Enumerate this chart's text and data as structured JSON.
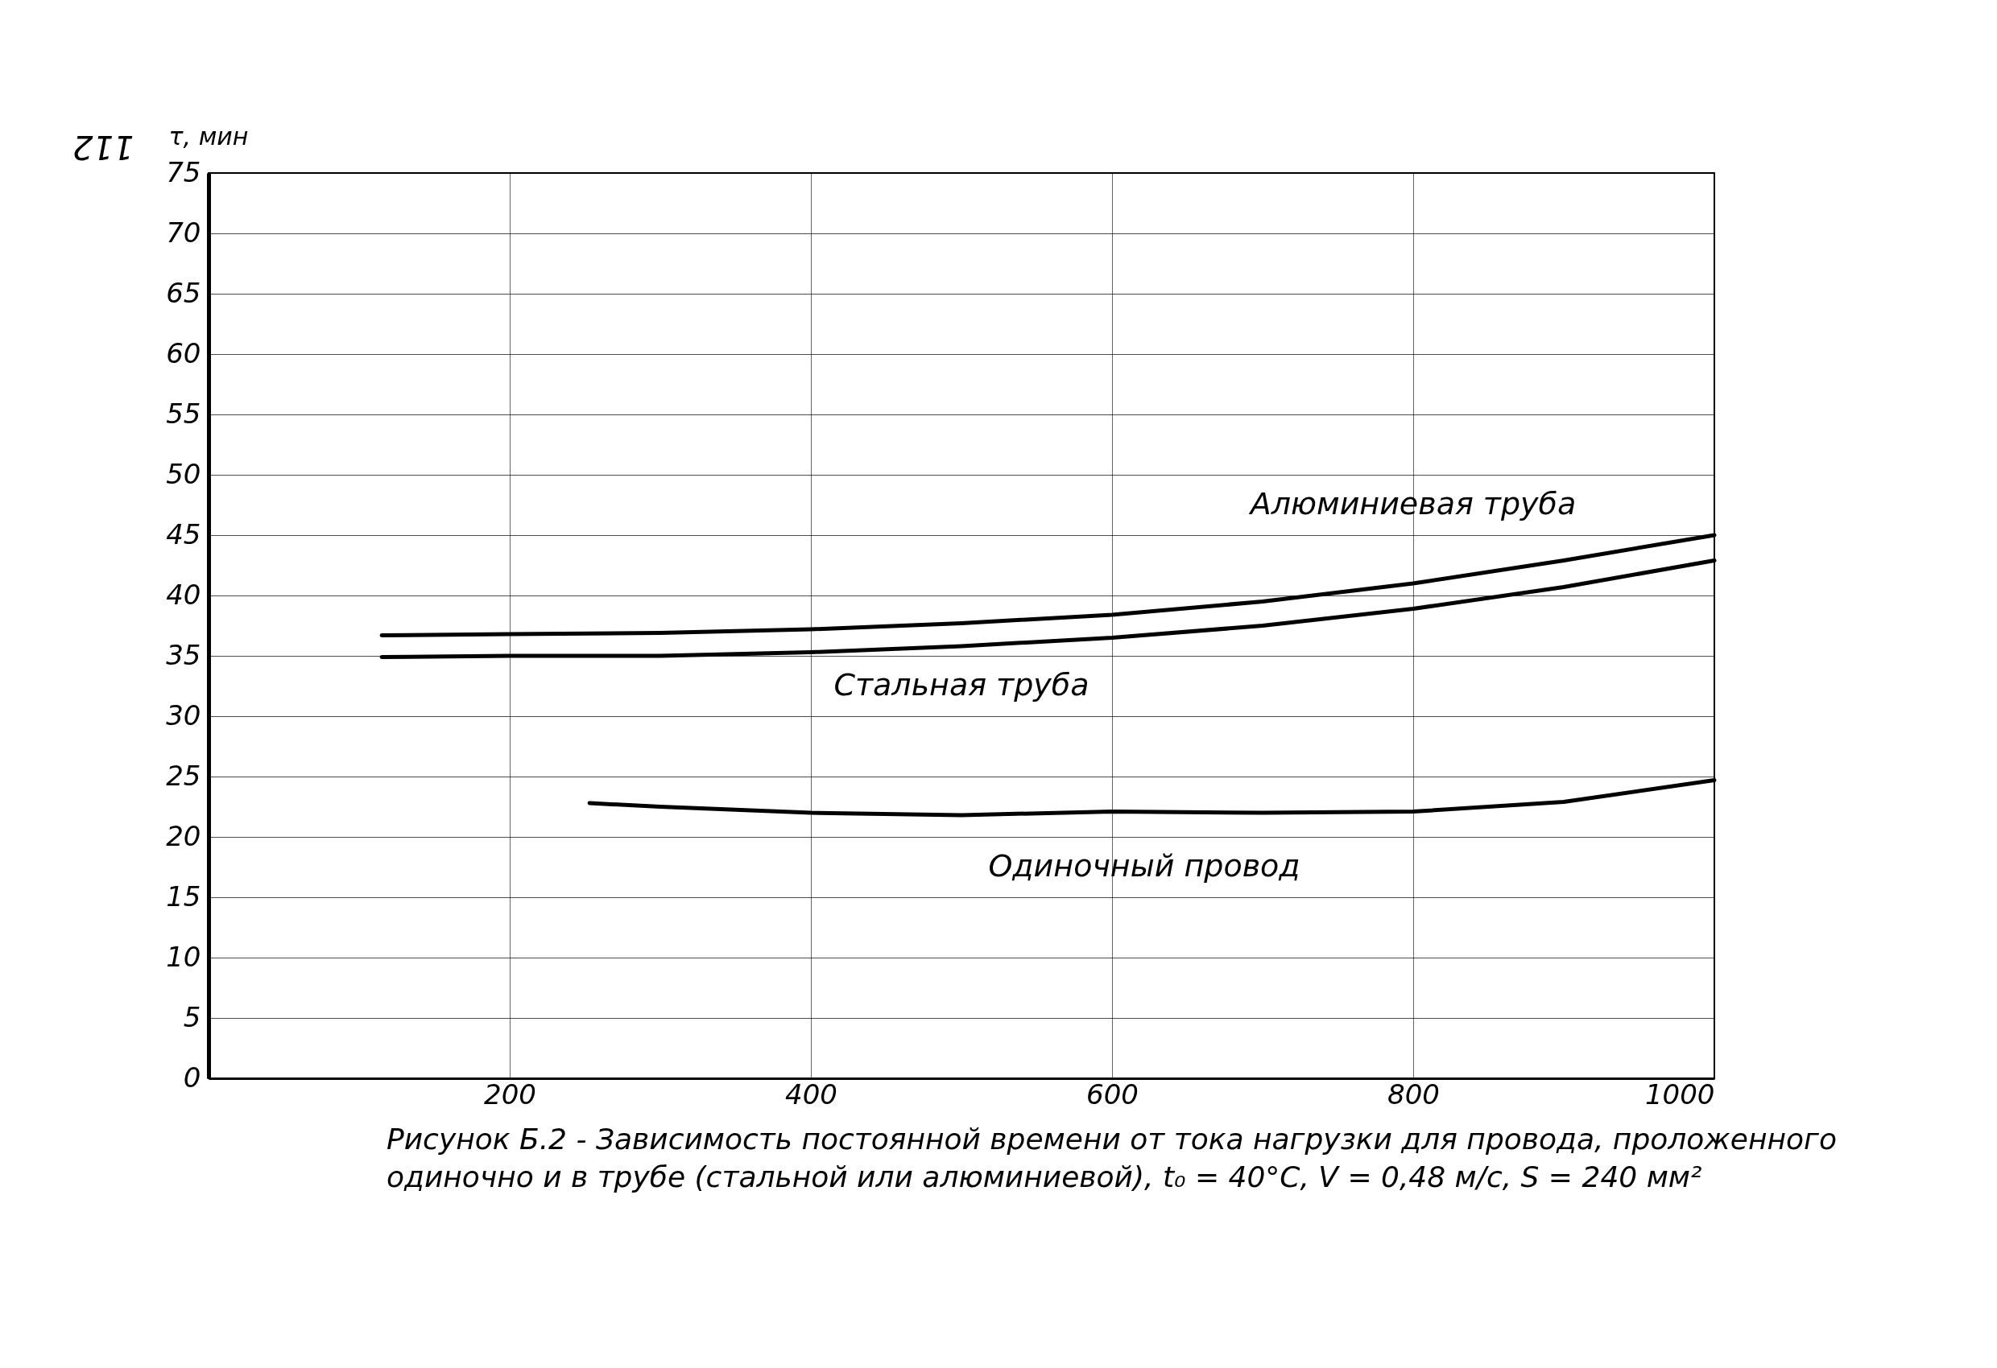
{
  "chart_data": {
    "type": "line",
    "ylabel": "τ, мин",
    "xlim": [
      0,
      1000
    ],
    "xticks": [
      200,
      400,
      600,
      800,
      1000
    ],
    "ylim": [
      0,
      75
    ],
    "yticks": [
      0,
      5,
      10,
      15,
      20,
      25,
      30,
      35,
      40,
      45,
      50,
      55,
      60,
      65,
      70,
      75
    ],
    "grid": true,
    "series": [
      {
        "name": "Алюминиевая труба",
        "color": "#000000",
        "x": [
          115,
          200,
          300,
          400,
          500,
          600,
          700,
          800,
          900,
          1000
        ],
        "values": [
          36.7,
          36.8,
          36.9,
          37.2,
          37.7,
          38.4,
          39.5,
          41.0,
          42.9,
          45.0
        ]
      },
      {
        "name": "Стальная труба",
        "color": "#000000",
        "x": [
          115,
          200,
          300,
          400,
          500,
          600,
          700,
          800,
          900,
          1000
        ],
        "values": [
          34.9,
          35.0,
          35.0,
          35.3,
          35.8,
          36.5,
          37.5,
          38.9,
          40.7,
          42.9
        ]
      },
      {
        "name": "Одиночный провод",
        "color": "#000000",
        "x": [
          253,
          300,
          400,
          500,
          600,
          700,
          800,
          900,
          1000
        ],
        "values": [
          22.8,
          22.5,
          22.0,
          21.8,
          22.1,
          22.0,
          22.1,
          22.9,
          24.7
        ]
      }
    ],
    "annotations": [
      "112",
      "Рисунок Б.2 - Зависимость постоянной времени от тока нагрузки для провода, проложенного одиночно и в трубе (стальной или алюминиевой), t₀ = 40°C, V = 0,48 м/с, S = 240 мм²"
    ]
  }
}
